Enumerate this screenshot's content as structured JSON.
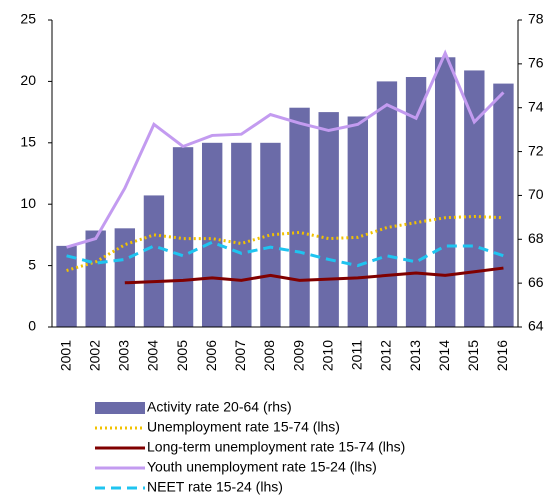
{
  "chart_data": {
    "type": "bar",
    "categories": [
      "2001",
      "2002",
      "2003",
      "2004",
      "2005",
      "2006",
      "2007",
      "2008",
      "2009",
      "2010",
      "2011",
      "2012",
      "2013",
      "2014",
      "2015",
      "2016"
    ],
    "ylim": [
      0,
      25
    ],
    "yticks": [
      0,
      5,
      10,
      15,
      20,
      25
    ],
    "y2lim": [
      64,
      78
    ],
    "y2ticks": [
      64,
      66,
      68,
      70,
      72,
      74,
      76,
      78
    ],
    "series": [
      {
        "name": "Activity rate 20-64 (rhs)",
        "type": "bar",
        "axis": "y2",
        "color": "#6b6ba8",
        "values": [
          67.7,
          68.4,
          68.5,
          70.0,
          72.2,
          72.4,
          72.4,
          72.4,
          74.0,
          73.8,
          73.6,
          75.2,
          75.4,
          76.3,
          75.7,
          75.1
        ]
      },
      {
        "name": "Unemployment rate 15-74 (lhs)",
        "type": "line",
        "dash": "dotted",
        "color": "#f2c200",
        "values": [
          4.6,
          5.3,
          6.7,
          7.5,
          7.2,
          7.2,
          6.8,
          7.5,
          7.7,
          7.2,
          7.3,
          8.1,
          8.5,
          8.9,
          9.0,
          8.9
        ]
      },
      {
        "name": "Long-term unemployment rate 15-74 (lhs)",
        "type": "line",
        "dash": "solid",
        "color": "#800000",
        "values": [
          null,
          null,
          3.6,
          3.7,
          3.8,
          4.0,
          3.8,
          4.2,
          3.8,
          3.9,
          4.0,
          4.2,
          4.4,
          4.2,
          4.5,
          4.8
        ]
      },
      {
        "name": "Youth unemployment rate 15-24 (lhs)",
        "type": "line",
        "dash": "solid",
        "color": "#c39bf0",
        "values": [
          6.5,
          7.2,
          11.3,
          16.5,
          14.7,
          15.6,
          15.7,
          17.3,
          16.6,
          16.0,
          16.5,
          18.1,
          17.0,
          22.3,
          16.7,
          19.1
        ]
      },
      {
        "name": "NEET rate 15-24 (lhs)",
        "type": "line",
        "dash": "dashed",
        "color": "#1fc4f0",
        "values": [
          5.8,
          5.2,
          5.5,
          6.6,
          5.8,
          6.9,
          6.0,
          6.5,
          6.1,
          5.5,
          5.0,
          5.8,
          5.3,
          6.6,
          6.6,
          5.8
        ]
      }
    ]
  }
}
